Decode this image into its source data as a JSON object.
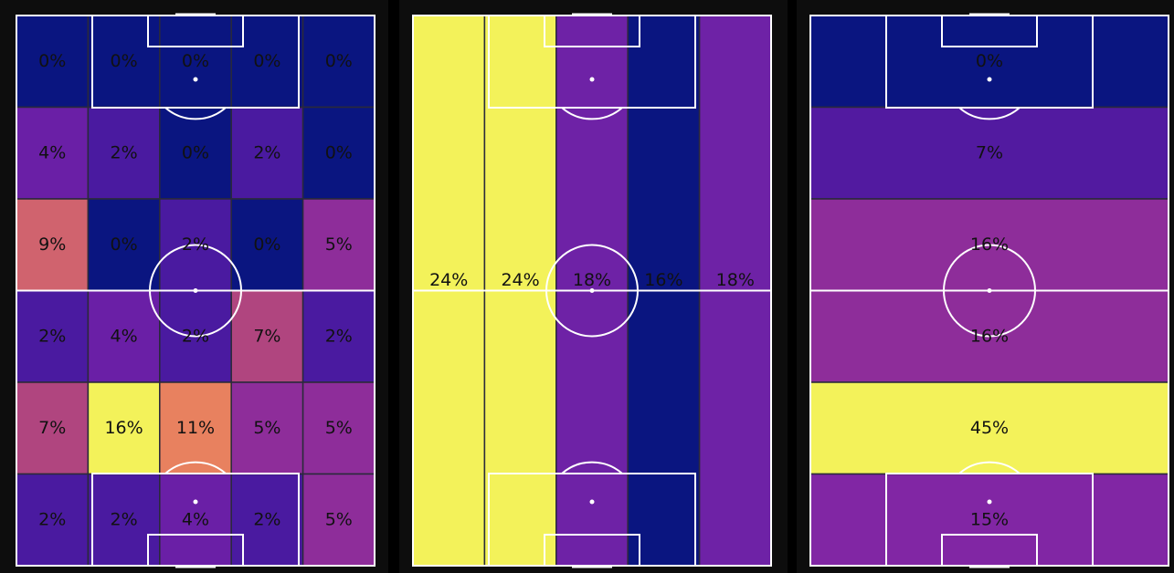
{
  "chart_data": [
    {
      "type": "heatmap",
      "grid": "5 columns x 6 rows",
      "values": [
        [
          "0%",
          "0%",
          "0%",
          "0%",
          "0%"
        ],
        [
          "4%",
          "2%",
          "0%",
          "2%",
          "0%"
        ],
        [
          "9%",
          "0%",
          "2%",
          "0%",
          "5%"
        ],
        [
          "2%",
          "4%",
          "2%",
          "7%",
          "2%"
        ],
        [
          "7%",
          "16%",
          "11%",
          "5%",
          "5%"
        ],
        [
          "2%",
          "2%",
          "4%",
          "2%",
          "5%"
        ]
      ],
      "colors": [
        [
          "#0a1580",
          "#0a1580",
          "#0a1580",
          "#0a1580",
          "#0a1580"
        ],
        [
          "#6a1fa6",
          "#4a1aa0",
          "#0a1580",
          "#4a1aa0",
          "#0a1580"
        ],
        [
          "#d0636e",
          "#0a1580",
          "#4a1aa0",
          "#0a1580",
          "#8e2d9a"
        ],
        [
          "#4a1aa0",
          "#6a1fa6",
          "#4a1aa0",
          "#b0457f",
          "#4a1aa0"
        ],
        [
          "#b0457f",
          "#f3f25a",
          "#e8815f",
          "#8e2d9a",
          "#8e2d9a"
        ],
        [
          "#4a1aa0",
          "#4a1aa0",
          "#6a1fa6",
          "#4a1aa0",
          "#8e2d9a"
        ]
      ]
    },
    {
      "type": "heatmap",
      "grid": "5 vertical channels",
      "values": [
        "24%",
        "24%",
        "18%",
        "16%",
        "18%"
      ],
      "colors": [
        "#f3f25a",
        "#f3f25a",
        "#6e22a6",
        "#0a1580",
        "#6e22a6"
      ]
    },
    {
      "type": "heatmap",
      "grid": "6 horizontal bands",
      "values": [
        "0%",
        "7%",
        "16%",
        "16%",
        "45%",
        "15%"
      ],
      "colors": [
        "#0a1580",
        "#521aa0",
        "#8e2d9a",
        "#8e2d9a",
        "#f3f25a",
        "#8126a4"
      ]
    }
  ],
  "pitch_line_color": "#ffffff",
  "background_color": "#000000"
}
